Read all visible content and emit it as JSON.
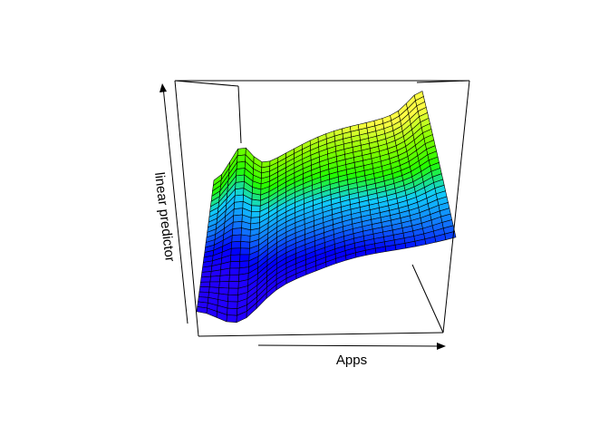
{
  "chart_data": {
    "type": "surface",
    "xlabel": "Apps",
    "ylabel": "",
    "zlabel": "linear predictor",
    "grid_rows": 26,
    "grid_cols": 26,
    "colormap": [
      "#2200ff",
      "#0000ff",
      "#1177ff",
      "#11ccff",
      "#22ff00",
      "#88ff00",
      "#ffff44"
    ],
    "mesh_color": "#000000",
    "box_color": "#000000"
  }
}
